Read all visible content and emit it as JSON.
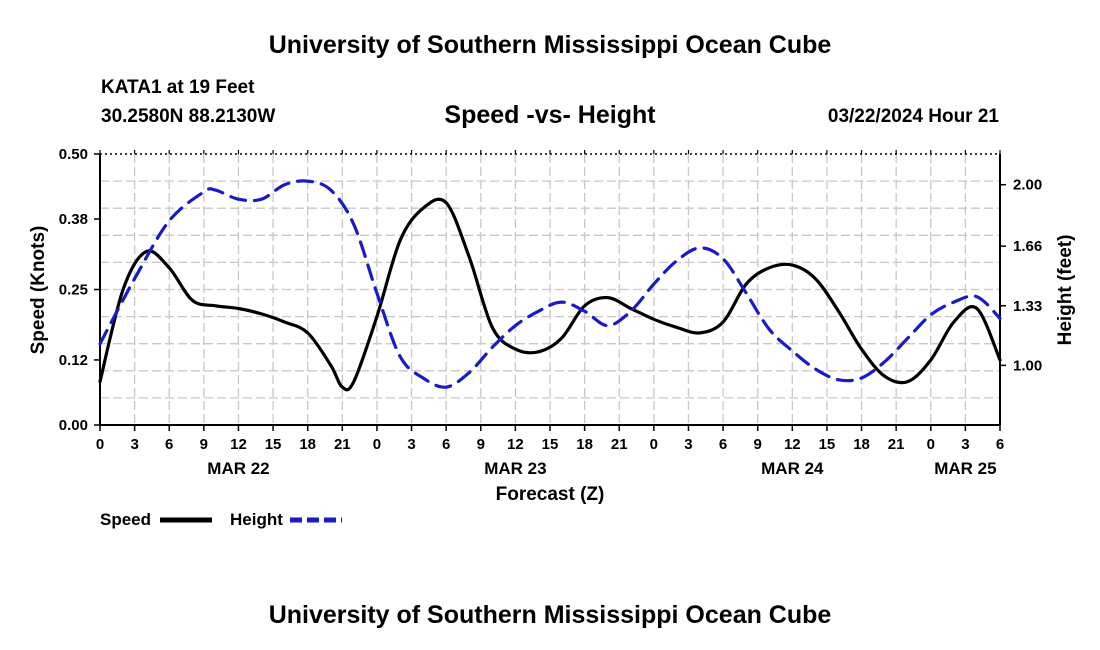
{
  "header": {
    "title": "University of Southern Mississippi Ocean Cube",
    "station": "KATA1 at 19 Feet",
    "coords": "30.2580N  88.2130W",
    "date_hour": "03/22/2024 Hour 21"
  },
  "footer": {
    "title": "University of Southern Mississippi Ocean Cube"
  },
  "colors": {
    "speed": "#000000",
    "height": "#1a1ac8",
    "grid": "#c8c8c8"
  },
  "chart_data": {
    "type": "line",
    "title": "Speed -vs- Height",
    "xlabel": "Forecast (Z)",
    "ylabel_left": "Speed (Knots)",
    "ylabel_right": "Height (feet)",
    "x_range_hours": [
      0,
      78
    ],
    "x_tick_labels": [
      "0",
      "3",
      "6",
      "9",
      "12",
      "15",
      "18",
      "21",
      "0",
      "3",
      "6",
      "9",
      "12",
      "15",
      "18",
      "21",
      "0",
      "3",
      "6",
      "9",
      "12",
      "15",
      "18",
      "21",
      "0",
      "3",
      "6"
    ],
    "date_labels": [
      {
        "label": "MAR 22",
        "hour": 12
      },
      {
        "label": "MAR 23",
        "hour": 36
      },
      {
        "label": "MAR 24",
        "hour": 60
      },
      {
        "label": "MAR 25",
        "hour": 75
      }
    ],
    "y_left": {
      "range": [
        0,
        0.5
      ],
      "ticks": [
        0.0,
        0.12,
        0.25,
        0.38,
        0.5
      ],
      "tick_labels": [
        "0.00",
        "0.12",
        "0.25",
        "0.38",
        "0.50"
      ]
    },
    "y_right": {
      "range": [
        0.67,
        2.17
      ],
      "ticks": [
        1.0,
        1.33,
        1.66,
        2.0
      ],
      "tick_labels": [
        "1.00",
        "1.33",
        "1.66",
        "2.00"
      ]
    },
    "legend": [
      {
        "name": "Speed",
        "style": "solid"
      },
      {
        "name": "Height",
        "style": "dashed"
      }
    ],
    "series": [
      {
        "name": "Speed",
        "axis": "left",
        "x": [
          0,
          2,
          4,
          6,
          8,
          10,
          12,
          14,
          16,
          18,
          20,
          21,
          22,
          24,
          26,
          28,
          30,
          32,
          34,
          36,
          38,
          40,
          42,
          44,
          46,
          48,
          50,
          52,
          54,
          56,
          58,
          60,
          62,
          64,
          66,
          68,
          70,
          72,
          74,
          76,
          78
        ],
        "y": [
          0.08,
          0.25,
          0.32,
          0.29,
          0.23,
          0.22,
          0.215,
          0.205,
          0.19,
          0.17,
          0.11,
          0.07,
          0.08,
          0.2,
          0.34,
          0.4,
          0.41,
          0.31,
          0.18,
          0.14,
          0.135,
          0.16,
          0.22,
          0.235,
          0.215,
          0.195,
          0.18,
          0.17,
          0.19,
          0.26,
          0.29,
          0.295,
          0.27,
          0.21,
          0.14,
          0.09,
          0.08,
          0.12,
          0.19,
          0.215,
          0.12
        ]
      },
      {
        "name": "Height",
        "axis": "right",
        "x": [
          0,
          3,
          6,
          9,
          10,
          12,
          14,
          16,
          18,
          20,
          22,
          24,
          26,
          28,
          30,
          32,
          34,
          36,
          38,
          40,
          42,
          44,
          46,
          48,
          50,
          52,
          54,
          56,
          58,
          60,
          62,
          64,
          66,
          68,
          70,
          72,
          74,
          76,
          78
        ],
        "y": [
          1.12,
          1.48,
          1.8,
          1.96,
          1.97,
          1.92,
          1.92,
          2.0,
          2.02,
          1.97,
          1.78,
          1.4,
          1.05,
          0.93,
          0.88,
          0.96,
          1.1,
          1.22,
          1.3,
          1.35,
          1.3,
          1.22,
          1.3,
          1.45,
          1.58,
          1.65,
          1.59,
          1.4,
          1.2,
          1.08,
          0.98,
          0.92,
          0.93,
          1.02,
          1.15,
          1.28,
          1.35,
          1.38,
          1.26
        ]
      }
    ]
  }
}
